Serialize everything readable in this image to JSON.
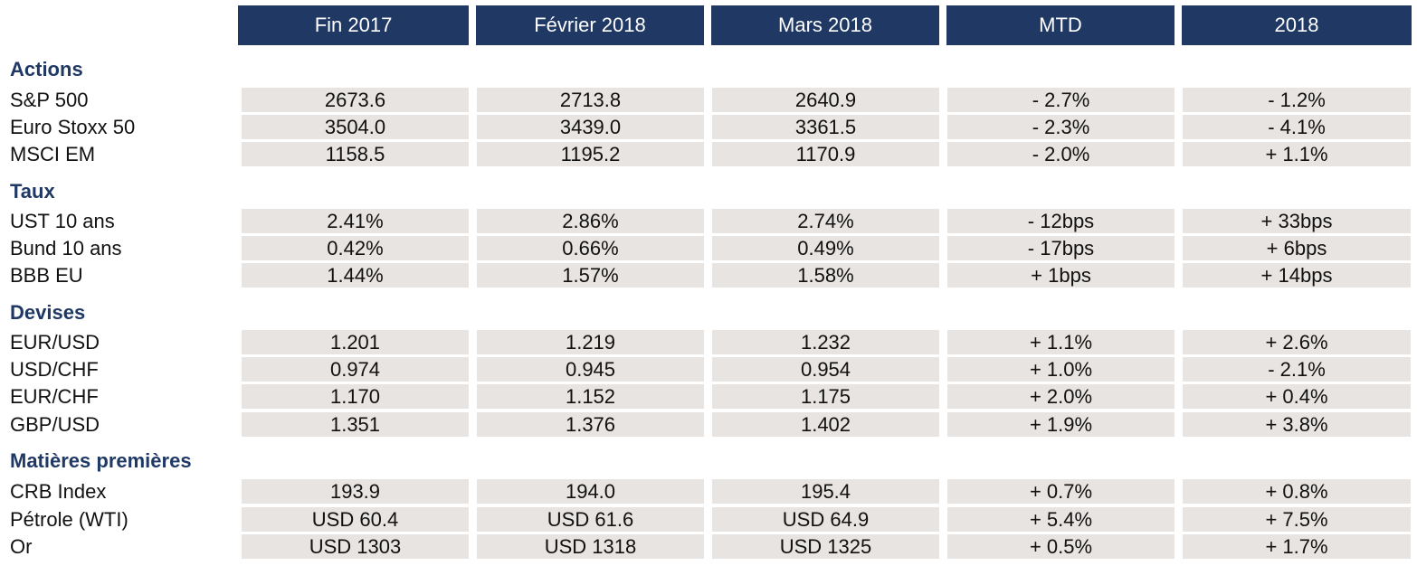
{
  "headers": [
    "Fin 2017",
    "Février 2018",
    "Mars 2018",
    "MTD",
    "2018"
  ],
  "sections": [
    {
      "title": "Actions",
      "rows": [
        {
          "label": "S&P 500",
          "values": [
            "2673.6",
            "2713.8",
            "2640.9",
            "- 2.7%",
            "- 1.2%"
          ]
        },
        {
          "label": "Euro Stoxx 50",
          "values": [
            "3504.0",
            "3439.0",
            "3361.5",
            "- 2.3%",
            "- 4.1%"
          ]
        },
        {
          "label": "MSCI EM",
          "values": [
            "1158.5",
            "1195.2",
            "1170.9",
            "- 2.0%",
            "+ 1.1%"
          ]
        }
      ]
    },
    {
      "title": "Taux",
      "rows": [
        {
          "label": "UST 10 ans",
          "values": [
            "2.41%",
            "2.86%",
            "2.74%",
            "- 12bps",
            "+ 33bps"
          ]
        },
        {
          "label": "Bund 10 ans",
          "values": [
            "0.42%",
            "0.66%",
            "0.49%",
            "- 17bps",
            "+ 6bps"
          ]
        },
        {
          "label": "BBB EU",
          "values": [
            "1.44%",
            "1.57%",
            "1.58%",
            "+ 1bps",
            "+ 14bps"
          ]
        }
      ]
    },
    {
      "title": "Devises",
      "rows": [
        {
          "label": "EUR/USD",
          "values": [
            "1.201",
            "1.219",
            "1.232",
            "+ 1.1%",
            "+ 2.6%"
          ]
        },
        {
          "label": "USD/CHF",
          "values": [
            "0.974",
            "0.945",
            "0.954",
            "+ 1.0%",
            "- 2.1%"
          ]
        },
        {
          "label": "EUR/CHF",
          "values": [
            "1.170",
            "1.152",
            "1.175",
            "+ 2.0%",
            "+ 0.4%"
          ]
        },
        {
          "label": "GBP/USD",
          "values": [
            "1.351",
            "1.376",
            "1.402",
            "+ 1.9%",
            "+ 3.8%"
          ]
        }
      ]
    },
    {
      "title": "Matières premières",
      "rows": [
        {
          "label": "CRB Index",
          "values": [
            "193.9",
            "194.0",
            "195.4",
            "+ 0.7%",
            "+ 0.8%"
          ]
        },
        {
          "label": "Pétrole (WTI)",
          "values": [
            "USD 60.4",
            "USD 61.6",
            "USD 64.9",
            "+ 5.4%",
            "+ 7.5%"
          ]
        },
        {
          "label": "Or",
          "values": [
            "USD 1303",
            "USD 1318",
            "USD 1325",
            "+ 0.5%",
            "+ 1.7%"
          ]
        }
      ]
    }
  ],
  "colors": {
    "header_bg": "#1f3864",
    "header_text": "#ffffff",
    "section_title": "#1f3864",
    "cell_bg": "#e7e4e1"
  }
}
